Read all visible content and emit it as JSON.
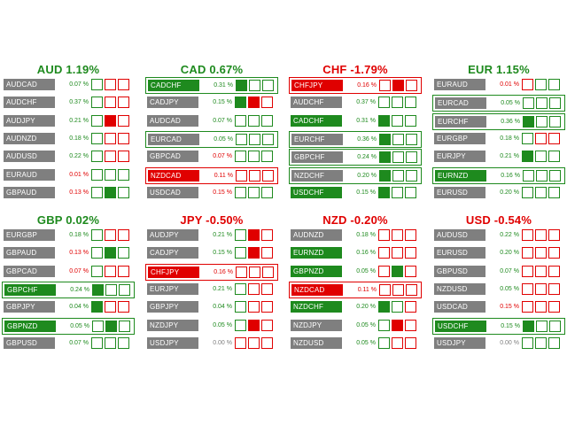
{
  "colors": {
    "up": "#1e8a1e",
    "down": "#e00000",
    "neutral_text": "#808080",
    "pair_bg": "#7f7f7f",
    "box_empty": "#ffffff"
  },
  "panels": [
    {
      "title": "AUD 1.19%",
      "trend": "up",
      "rows": [
        {
          "pair": "AUDCAD",
          "pct": "0.07 %",
          "trend": "up",
          "tag": "",
          "hl": "",
          "boxes": [
            "g",
            "r",
            "r"
          ],
          "fills": [
            0,
            0,
            0
          ]
        },
        {
          "pair": "AUDCHF",
          "pct": "0.37 %",
          "trend": "up",
          "tag": "",
          "hl": "",
          "boxes": [
            "g",
            "r",
            "r"
          ],
          "fills": [
            0,
            0,
            0
          ]
        },
        {
          "pair": "AUDJPY",
          "pct": "0.21 %",
          "trend": "up",
          "tag": "",
          "hl": "",
          "boxes": [
            "g",
            "r",
            "r"
          ],
          "fills": [
            0,
            1,
            0
          ]
        },
        {
          "pair": "AUDNZD",
          "pct": "0.18 %",
          "trend": "up",
          "tag": "",
          "hl": "",
          "boxes": [
            "g",
            "r",
            "r"
          ],
          "fills": [
            0,
            0,
            0
          ]
        },
        {
          "pair": "AUDUSD",
          "pct": "0.22 %",
          "trend": "up",
          "tag": "",
          "hl": "",
          "boxes": [
            "g",
            "r",
            "r"
          ],
          "fills": [
            0,
            0,
            0
          ]
        },
        {
          "pair": "EURAUD",
          "pct": "0.01 %",
          "trend": "down",
          "tag": "",
          "hl": "",
          "boxes": [
            "g",
            "g",
            "g"
          ],
          "fills": [
            0,
            0,
            0
          ]
        },
        {
          "pair": "GBPAUD",
          "pct": "0.13 %",
          "trend": "down",
          "tag": "",
          "hl": "",
          "boxes": [
            "g",
            "g",
            "g"
          ],
          "fills": [
            0,
            1,
            0
          ]
        }
      ]
    },
    {
      "title": "CAD 0.67%",
      "trend": "up",
      "rows": [
        {
          "pair": "CADCHF",
          "pct": "0.31 %",
          "trend": "up",
          "tag": "green",
          "hl": "green",
          "boxes": [
            "g",
            "g",
            "g"
          ],
          "fills": [
            1,
            0,
            0
          ]
        },
        {
          "pair": "CADJPY",
          "pct": "0.15 %",
          "trend": "up",
          "tag": "",
          "hl": "",
          "boxes": [
            "g",
            "r",
            "r"
          ],
          "fills": [
            1,
            1,
            0
          ]
        },
        {
          "pair": "AUDCAD",
          "pct": "0.07 %",
          "trend": "up",
          "tag": "",
          "hl": "",
          "boxes": [
            "g",
            "g",
            "g"
          ],
          "fills": [
            0,
            0,
            0
          ]
        },
        {
          "pair": "EURCAD",
          "pct": "0.05 %",
          "trend": "up",
          "tag": "",
          "hl": "green",
          "boxes": [
            "g",
            "g",
            "g"
          ],
          "fills": [
            0,
            0,
            0
          ]
        },
        {
          "pair": "GBPCAD",
          "pct": "0.07 %",
          "trend": "down",
          "tag": "",
          "hl": "",
          "boxes": [
            "g",
            "g",
            "g"
          ],
          "fills": [
            0,
            0,
            0
          ]
        },
        {
          "pair": "NZDCAD",
          "pct": "0.11 %",
          "trend": "down",
          "tag": "red",
          "hl": "red",
          "boxes": [
            "r",
            "r",
            "r"
          ],
          "fills": [
            0,
            0,
            0
          ]
        },
        {
          "pair": "USDCAD",
          "pct": "0.15 %",
          "trend": "down",
          "tag": "",
          "hl": "",
          "boxes": [
            "g",
            "g",
            "g"
          ],
          "fills": [
            0,
            0,
            0
          ]
        }
      ]
    },
    {
      "title": "CHF -1.79%",
      "trend": "down",
      "rows": [
        {
          "pair": "CHFJPY",
          "pct": "0.16 %",
          "trend": "down",
          "tag": "red",
          "hl": "red",
          "boxes": [
            "r",
            "r",
            "r"
          ],
          "fills": [
            0,
            1,
            0
          ]
        },
        {
          "pair": "AUDCHF",
          "pct": "0.37 %",
          "trend": "up",
          "tag": "",
          "hl": "",
          "boxes": [
            "g",
            "g",
            "g"
          ],
          "fills": [
            0,
            0,
            0
          ]
        },
        {
          "pair": "CADCHF",
          "pct": "0.31 %",
          "trend": "up",
          "tag": "green",
          "hl": "",
          "boxes": [
            "g",
            "g",
            "g"
          ],
          "fills": [
            1,
            0,
            0
          ]
        },
        {
          "pair": "EURCHF",
          "pct": "0.36 %",
          "trend": "up",
          "tag": "",
          "hl": "green",
          "boxes": [
            "g",
            "g",
            "g"
          ],
          "fills": [
            1,
            0,
            0
          ]
        },
        {
          "pair": "GBPCHF",
          "pct": "0.24 %",
          "trend": "up",
          "tag": "",
          "hl": "green",
          "boxes": [
            "g",
            "g",
            "g"
          ],
          "fills": [
            1,
            0,
            0
          ]
        },
        {
          "pair": "NZDCHF",
          "pct": "0.20 %",
          "trend": "up",
          "tag": "",
          "hl": "green",
          "boxes": [
            "g",
            "g",
            "g"
          ],
          "fills": [
            1,
            0,
            0
          ]
        },
        {
          "pair": "USDCHF",
          "pct": "0.15 %",
          "trend": "up",
          "tag": "green",
          "hl": "",
          "boxes": [
            "g",
            "g",
            "g"
          ],
          "fills": [
            1,
            0,
            0
          ]
        }
      ]
    },
    {
      "title": "EUR 1.15%",
      "trend": "up",
      "rows": [
        {
          "pair": "EURAUD",
          "pct": "0.01 %",
          "trend": "down",
          "tag": "",
          "hl": "",
          "boxes": [
            "r",
            "g",
            "g"
          ],
          "fills": [
            0,
            0,
            0
          ]
        },
        {
          "pair": "EURCAD",
          "pct": "0.05 %",
          "trend": "up",
          "tag": "",
          "hl": "green",
          "boxes": [
            "g",
            "g",
            "g"
          ],
          "fills": [
            0,
            0,
            0
          ]
        },
        {
          "pair": "EURCHF",
          "pct": "0.36 %",
          "trend": "up",
          "tag": "",
          "hl": "green",
          "boxes": [
            "g",
            "g",
            "g"
          ],
          "fills": [
            1,
            0,
            0
          ]
        },
        {
          "pair": "EURGBP",
          "pct": "0.18 %",
          "trend": "up",
          "tag": "",
          "hl": "",
          "boxes": [
            "g",
            "r",
            "r"
          ],
          "fills": [
            0,
            0,
            0
          ]
        },
        {
          "pair": "EURJPY",
          "pct": "0.21 %",
          "trend": "up",
          "tag": "",
          "hl": "",
          "boxes": [
            "g",
            "g",
            "g"
          ],
          "fills": [
            1,
            0,
            0
          ]
        },
        {
          "pair": "EURNZD",
          "pct": "0.16 %",
          "trend": "up",
          "tag": "green",
          "hl": "green",
          "boxes": [
            "g",
            "g",
            "g"
          ],
          "fills": [
            0,
            0,
            0
          ]
        },
        {
          "pair": "EURUSD",
          "pct": "0.20 %",
          "trend": "up",
          "tag": "",
          "hl": "",
          "boxes": [
            "g",
            "g",
            "g"
          ],
          "fills": [
            0,
            0,
            0
          ]
        }
      ]
    },
    {
      "title": "GBP 0.02%",
      "trend": "up",
      "rows": [
        {
          "pair": "EURGBP",
          "pct": "0.18 %",
          "trend": "up",
          "tag": "",
          "hl": "",
          "boxes": [
            "g",
            "r",
            "r"
          ],
          "fills": [
            0,
            0,
            0
          ]
        },
        {
          "pair": "GBPAUD",
          "pct": "0.13 %",
          "trend": "down",
          "tag": "",
          "hl": "",
          "boxes": [
            "g",
            "g",
            "g"
          ],
          "fills": [
            0,
            1,
            0
          ]
        },
        {
          "pair": "GBPCAD",
          "pct": "0.07 %",
          "trend": "down",
          "tag": "",
          "hl": "",
          "boxes": [
            "g",
            "r",
            "r"
          ],
          "fills": [
            0,
            0,
            0
          ]
        },
        {
          "pair": "GBPCHF",
          "pct": "0.24 %",
          "trend": "up",
          "tag": "green",
          "hl": "green",
          "boxes": [
            "g",
            "g",
            "g"
          ],
          "fills": [
            1,
            0,
            0
          ]
        },
        {
          "pair": "GBPJPY",
          "pct": "0.04 %",
          "trend": "up",
          "tag": "",
          "hl": "",
          "boxes": [
            "g",
            "r",
            "r"
          ],
          "fills": [
            1,
            0,
            0
          ]
        },
        {
          "pair": "GBPNZD",
          "pct": "0.05 %",
          "trend": "up",
          "tag": "green",
          "hl": "green",
          "boxes": [
            "g",
            "g",
            "g"
          ],
          "fills": [
            0,
            1,
            0
          ]
        },
        {
          "pair": "GBPUSD",
          "pct": "0.07 %",
          "trend": "up",
          "tag": "",
          "hl": "",
          "boxes": [
            "g",
            "g",
            "g"
          ],
          "fills": [
            0,
            0,
            0
          ]
        }
      ]
    },
    {
      "title": "JPY -0.50%",
      "trend": "down",
      "rows": [
        {
          "pair": "AUDJPY",
          "pct": "0.21 %",
          "trend": "up",
          "tag": "",
          "hl": "",
          "boxes": [
            "g",
            "r",
            "r"
          ],
          "fills": [
            0,
            1,
            0
          ]
        },
        {
          "pair": "CADJPY",
          "pct": "0.15 %",
          "trend": "up",
          "tag": "",
          "hl": "",
          "boxes": [
            "g",
            "r",
            "r"
          ],
          "fills": [
            0,
            1,
            0
          ]
        },
        {
          "pair": "CHFJPY",
          "pct": "0.16 %",
          "trend": "down",
          "tag": "red",
          "hl": "red",
          "boxes": [
            "r",
            "r",
            "r"
          ],
          "fills": [
            0,
            0,
            0
          ]
        },
        {
          "pair": "EURJPY",
          "pct": "0.21 %",
          "trend": "up",
          "tag": "",
          "hl": "",
          "boxes": [
            "g",
            "r",
            "r"
          ],
          "fills": [
            0,
            0,
            0
          ]
        },
        {
          "pair": "GBPJPY",
          "pct": "0.04 %",
          "trend": "up",
          "tag": "",
          "hl": "",
          "boxes": [
            "g",
            "r",
            "r"
          ],
          "fills": [
            0,
            0,
            0
          ]
        },
        {
          "pair": "NZDJPY",
          "pct": "0.05 %",
          "trend": "up",
          "tag": "",
          "hl": "",
          "boxes": [
            "g",
            "r",
            "r"
          ],
          "fills": [
            0,
            1,
            0
          ]
        },
        {
          "pair": "USDJPY",
          "pct": "0.00 %",
          "trend": "flat",
          "tag": "",
          "hl": "",
          "boxes": [
            "r",
            "r",
            "r"
          ],
          "fills": [
            0,
            0,
            0
          ]
        }
      ]
    },
    {
      "title": "NZD -0.20%",
      "trend": "down",
      "rows": [
        {
          "pair": "AUDNZD",
          "pct": "0.18 %",
          "trend": "up",
          "tag": "",
          "hl": "",
          "boxes": [
            "r",
            "r",
            "r"
          ],
          "fills": [
            0,
            0,
            0
          ]
        },
        {
          "pair": "EURNZD",
          "pct": "0.16 %",
          "trend": "up",
          "tag": "green",
          "hl": "",
          "boxes": [
            "r",
            "r",
            "r"
          ],
          "fills": [
            0,
            0,
            0
          ]
        },
        {
          "pair": "GBPNZD",
          "pct": "0.05 %",
          "trend": "up",
          "tag": "green",
          "hl": "",
          "boxes": [
            "r",
            "g",
            "r"
          ],
          "fills": [
            0,
            1,
            0
          ]
        },
        {
          "pair": "NZDCAD",
          "pct": "0.11 %",
          "trend": "down",
          "tag": "red",
          "hl": "red",
          "boxes": [
            "r",
            "r",
            "r"
          ],
          "fills": [
            0,
            0,
            0
          ]
        },
        {
          "pair": "NZDCHF",
          "pct": "0.20 %",
          "trend": "up",
          "tag": "green",
          "hl": "",
          "boxes": [
            "g",
            "g",
            "r"
          ],
          "fills": [
            1,
            0,
            0
          ]
        },
        {
          "pair": "NZDJPY",
          "pct": "0.05 %",
          "trend": "up",
          "tag": "",
          "hl": "",
          "boxes": [
            "g",
            "r",
            "r"
          ],
          "fills": [
            0,
            1,
            0
          ]
        },
        {
          "pair": "NZDUSD",
          "pct": "0.05 %",
          "trend": "up",
          "tag": "",
          "hl": "",
          "boxes": [
            "g",
            "r",
            "r"
          ],
          "fills": [
            0,
            0,
            0
          ]
        }
      ]
    },
    {
      "title": "USD -0.54%",
      "trend": "down",
      "rows": [
        {
          "pair": "AUDUSD",
          "pct": "0.22 %",
          "trend": "up",
          "tag": "",
          "hl": "",
          "boxes": [
            "r",
            "r",
            "r"
          ],
          "fills": [
            0,
            0,
            0
          ]
        },
        {
          "pair": "EURUSD",
          "pct": "0.20 %",
          "trend": "up",
          "tag": "",
          "hl": "",
          "boxes": [
            "r",
            "r",
            "r"
          ],
          "fills": [
            0,
            0,
            0
          ]
        },
        {
          "pair": "GBPUSD",
          "pct": "0.07 %",
          "trend": "up",
          "tag": "",
          "hl": "",
          "boxes": [
            "r",
            "r",
            "r"
          ],
          "fills": [
            0,
            0,
            0
          ]
        },
        {
          "pair": "NZDUSD",
          "pct": "0.05 %",
          "trend": "up",
          "tag": "",
          "hl": "",
          "boxes": [
            "r",
            "r",
            "r"
          ],
          "fills": [
            0,
            0,
            0
          ]
        },
        {
          "pair": "USDCAD",
          "pct": "0.15 %",
          "trend": "down",
          "tag": "",
          "hl": "",
          "boxes": [
            "r",
            "r",
            "r"
          ],
          "fills": [
            0,
            0,
            0
          ]
        },
        {
          "pair": "USDCHF",
          "pct": "0.15 %",
          "trend": "up",
          "tag": "green",
          "hl": "green",
          "boxes": [
            "g",
            "g",
            "g"
          ],
          "fills": [
            1,
            0,
            0
          ]
        },
        {
          "pair": "USDJPY",
          "pct": "0.00 %",
          "trend": "flat",
          "tag": "",
          "hl": "",
          "boxes": [
            "g",
            "g",
            "g"
          ],
          "fills": [
            0,
            0,
            0
          ]
        }
      ]
    }
  ]
}
